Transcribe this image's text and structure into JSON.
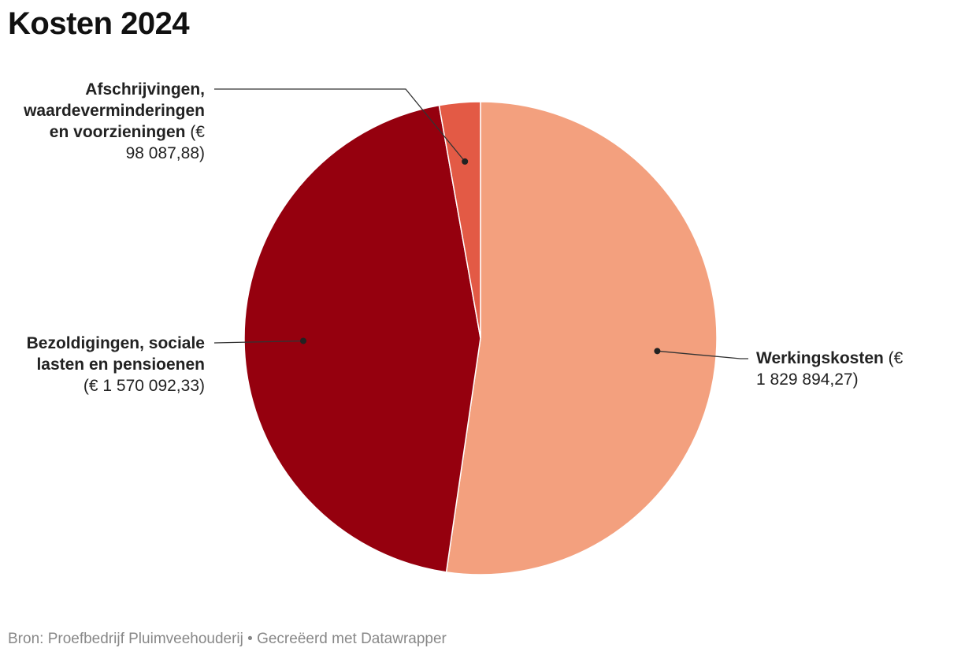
{
  "chart_data": {
    "type": "pie",
    "title": "Kosten 2024",
    "slices": [
      {
        "name": "Werkingskosten",
        "value": 1829894.27,
        "value_label": "€ 1 829 894,27",
        "color": "#F3A07E"
      },
      {
        "name": "Bezoldigingen, sociale lasten en pensioenen",
        "value": 1570092.33,
        "value_label": "€ 1 570 092,33",
        "color": "#95000E"
      },
      {
        "name": "Afschrijvingen, waardeverminderingen en voorzieningen",
        "value": 98087.88,
        "value_label": "€ 98 087,88",
        "color": "#E35A45"
      }
    ]
  },
  "labels": {
    "werking": {
      "name": "Werkingskosten",
      "value_line1": " (€",
      "value_line2": "1 829 894,27)"
    },
    "bezold": {
      "name_line1": "Bezoldigingen, sociale",
      "name_line2": "lasten en pensioenen",
      "value": "(€ 1 570 092,33)"
    },
    "afschr": {
      "name_line1": "Afschrijvingen,",
      "name_line2": "waardeverminderingen",
      "name_line3": "en voorzieningen",
      "value_part1": " (€",
      "value_line4": "98 087,88)"
    }
  },
  "footer": {
    "source": "Bron: Proefbedrijf Pluimveehouderij • Gecreëerd met Datawrapper"
  }
}
